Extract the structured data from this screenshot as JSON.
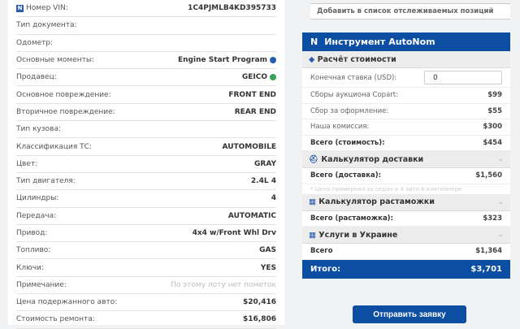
{
  "lot": {
    "rows": [
      {
        "label": "Номер VIN:",
        "value": "1C4PJMLB4KD395733"
      },
      {
        "label": "Тип документа:",
        "value": ""
      },
      {
        "label": "Одометр:",
        "value": ""
      },
      {
        "label": "Основные моменты:",
        "value": "Engine Start Program"
      },
      {
        "label": "Продавец:",
        "value": "GEICO"
      },
      {
        "label": "Основное повреждение:",
        "value": "FRONT END"
      },
      {
        "label": "Вторичное повреждение:",
        "value": "REAR END"
      },
      {
        "label": "Тип кузова:",
        "value": ""
      },
      {
        "label": "Классификация ТС:",
        "value": "AUTOMOBILE"
      },
      {
        "label": "Цвет:",
        "value": "GRAY"
      },
      {
        "label": "Тип двигателя:",
        "value": "2.4L 4"
      },
      {
        "label": "Цилиндры:",
        "value": "4"
      },
      {
        "label": "Передача:",
        "value": "AUTOMATIC"
      },
      {
        "label": "Привод:",
        "value": "4x4 w/Front Whl Drv"
      },
      {
        "label": "Топливо:",
        "value": "GAS"
      },
      {
        "label": "Ключи:",
        "value": "YES"
      },
      {
        "label": "Примечание:",
        "value": "По этому лоту нет пометок"
      },
      {
        "label": "Цена подержанного авто:",
        "value": "$20,416"
      },
      {
        "label": "Стоимость ремонта:",
        "value": "$16,806"
      }
    ]
  },
  "watchlist_label": "Добавить в список отслеживаемых позиций",
  "tool": {
    "title": "Инструмент AutoNom",
    "logo": "N",
    "cost": {
      "title": "Расчёт стоимости",
      "bid_label": "Конечная ставка (USD):",
      "bid_value": "0",
      "rows": [
        {
          "label": "Сборы аукциона Copart:",
          "value": "$99"
        },
        {
          "label": "Сбор за оформление:",
          "value": "$55"
        },
        {
          "label": "Наша комиссия:",
          "value": "$300"
        }
      ],
      "total_label": "Всего (стоимость):",
      "total_value": "$454"
    },
    "shipping": {
      "title": "Калькулятор доставки",
      "total_label": "Всего (доставка):",
      "total_value": "$1,560",
      "note": "* Цена примерная за седан и 4 авто в контейнере"
    },
    "customs": {
      "title": "Калькулятор растаможки",
      "total_label": "Всего (растаможка):",
      "total_value": "$323"
    },
    "ukraine": {
      "title": "Услуги в Украине",
      "total_label": "Всего",
      "total_value": "$1,364"
    },
    "grand_label": "Итого:",
    "grand_value": "$3,701",
    "submit_label": "Отправить заявку"
  },
  "colors": {
    "brand": "#0b4ea2",
    "verified": "#3aa05a",
    "help": "#2a5db0"
  }
}
